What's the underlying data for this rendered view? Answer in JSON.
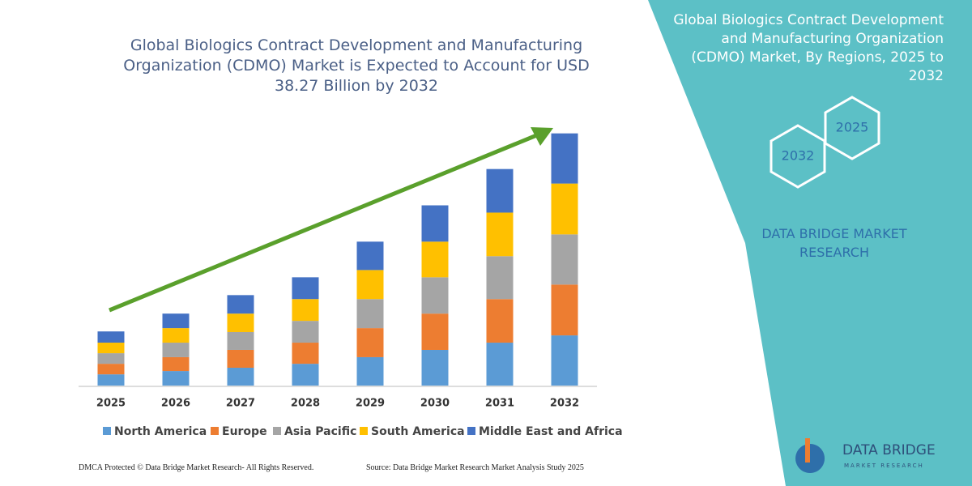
{
  "chart_data": {
    "type": "stacked-bar",
    "title": "Global Biologics Contract Development and Manufacturing Organization (CDMO) Market is Expected to Account for USD 38.27 Billion by 2032",
    "categories": [
      "2025",
      "2026",
      "2027",
      "2028",
      "2029",
      "2030",
      "2031",
      "2032"
    ],
    "series": [
      {
        "name": "North America",
        "color": "#5b9bd5",
        "values": [
          1.7,
          2.2,
          2.7,
          3.3,
          4.3,
          5.4,
          6.5,
          7.6
        ]
      },
      {
        "name": "Europe",
        "color": "#ed7d31",
        "values": [
          1.6,
          2.1,
          2.7,
          3.2,
          4.4,
          5.5,
          6.6,
          7.7
        ]
      },
      {
        "name": "Asia Pacific",
        "color": "#a5a5a5",
        "values": [
          1.6,
          2.2,
          2.7,
          3.3,
          4.4,
          5.5,
          6.5,
          7.6
        ]
      },
      {
        "name": "South America",
        "color": "#ffc000",
        "values": [
          1.6,
          2.2,
          2.8,
          3.3,
          4.4,
          5.4,
          6.6,
          7.7
        ]
      },
      {
        "name": "Middle East and Africa",
        "color": "#4472c4",
        "values": [
          1.7,
          2.2,
          2.8,
          3.3,
          4.3,
          5.5,
          6.6,
          7.6
        ]
      }
    ],
    "legend": "bottom"
  },
  "panel": {
    "title": "Global Biologics Contract Development and Manufacturing Organization (CDMO) Market, By Regions, 2025 to 2032",
    "hex_top": "2025",
    "hex_bottom": "2032",
    "brand": "DATA BRIDGE MARKET RESEARCH"
  },
  "logo": {
    "name": "DATA BRIDGE",
    "tagline": "MARKET RESEARCH"
  },
  "footer": {
    "left": "DMCA Protected © Data Bridge Market Research-  All Rights Reserved.",
    "right": "Source: Data Bridge Market Research  Market Analysis Study 2025"
  }
}
